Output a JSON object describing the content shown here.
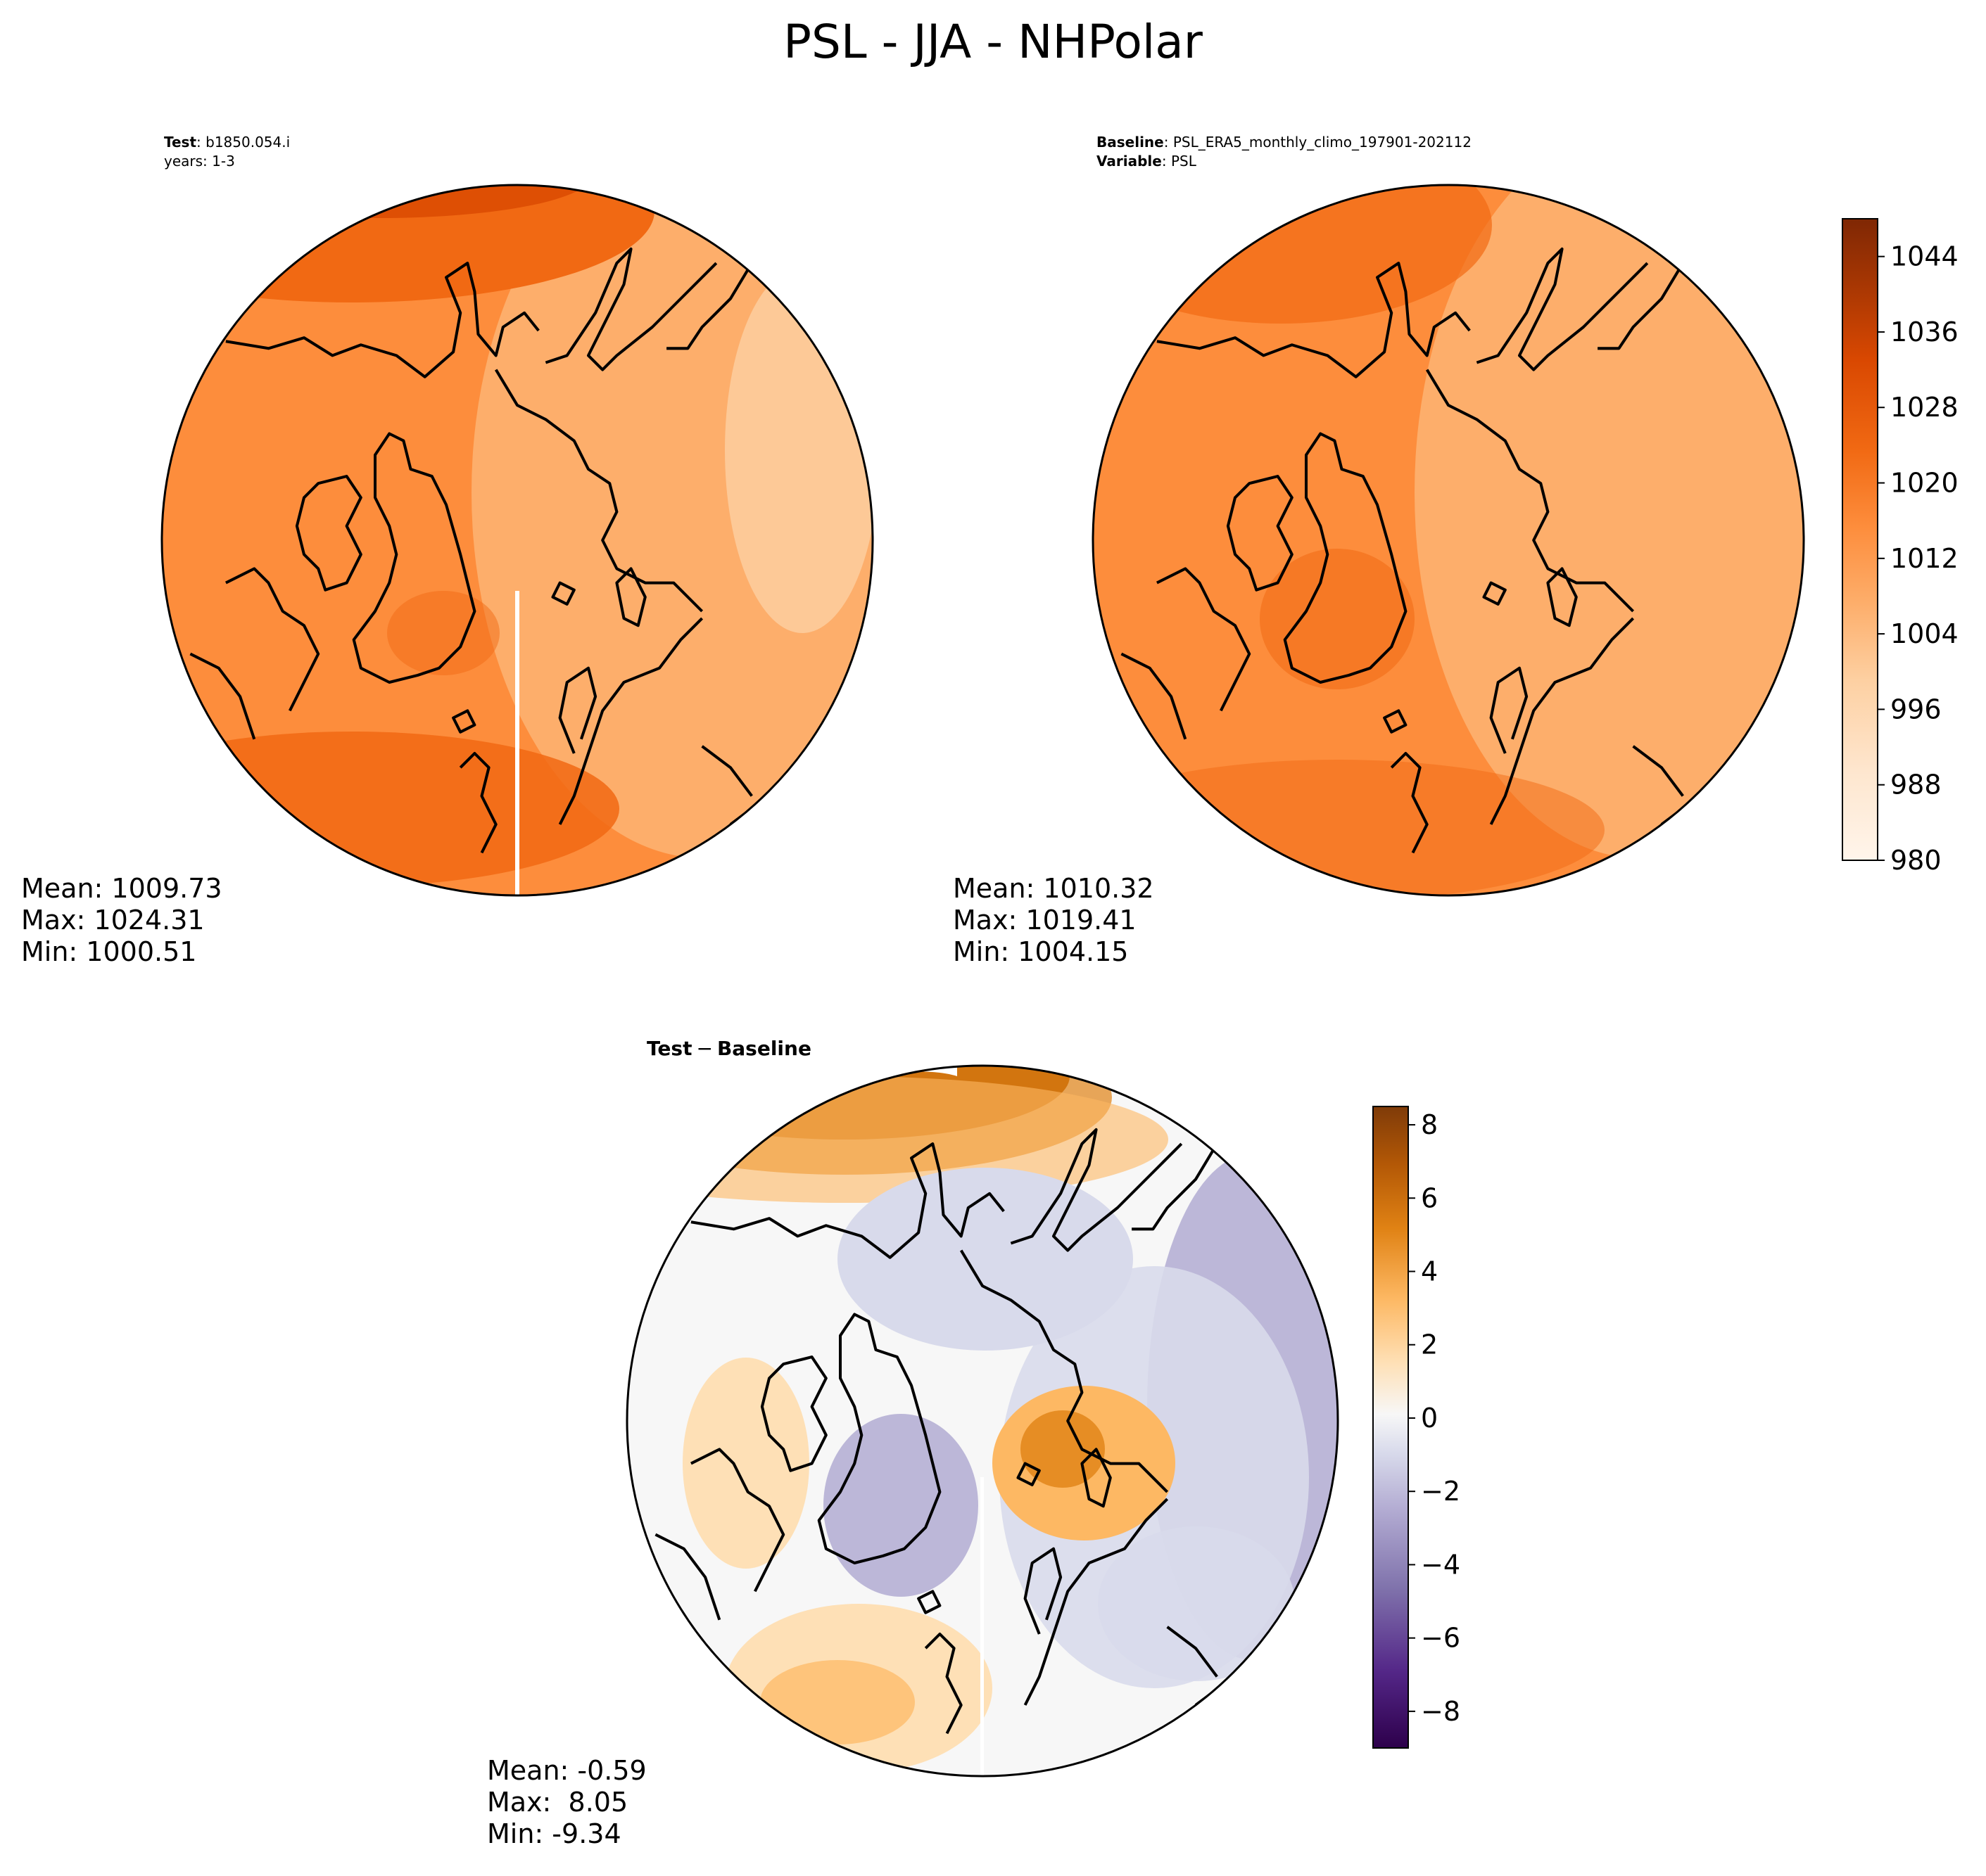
{
  "figure": {
    "title": "PSL - JJA - NHPolar"
  },
  "panels": [
    {
      "id": "test",
      "header": [
        {
          "bold": "Test",
          "sep": ": ",
          "text": "b1850.054.i"
        },
        {
          "bold": "",
          "sep": "",
          "text": "years: 1-3"
        }
      ],
      "summary": [
        "Mean: 1009.73",
        "Max: 1024.31",
        "Min: 1000.51"
      ],
      "palette": "oranges"
    },
    {
      "id": "baseline",
      "header": [
        {
          "bold": "Baseline",
          "sep": ": ",
          "text": "PSL_ERA5_monthly_climo_197901-202112"
        },
        {
          "bold": "Variable",
          "sep": ": ",
          "text": "PSL"
        }
      ],
      "summary": [
        "Mean: 1010.32",
        "Max: 1019.41",
        "Min: 1004.15"
      ],
      "palette": "oranges"
    },
    {
      "id": "diff",
      "title_bold_left": "Test",
      "title_op": "−",
      "title_bold_right": "Baseline",
      "summary": [
        "Mean: -0.59",
        "Max:  8.05",
        "Min: -9.34"
      ],
      "palette": "diverging"
    }
  ],
  "colorbars": {
    "absolute": {
      "range": [
        980,
        1048
      ],
      "ticks": [
        1044,
        1036,
        1028,
        1020,
        1012,
        1004,
        996,
        988,
        980
      ],
      "tick_labels": [
        "1044",
        "1036",
        "1028",
        "1020",
        "1012",
        "1004",
        "996",
        "988",
        "980"
      ]
    },
    "difference": {
      "range": [
        -9,
        8.5
      ],
      "ticks": [
        8,
        6,
        4,
        2,
        0,
        -2,
        -4,
        -6,
        -8
      ],
      "tick_labels": [
        "8",
        "6",
        "4",
        "2",
        "0",
        "−2",
        "−4",
        "−6",
        "−8"
      ]
    }
  },
  "colors": {
    "orange_ramp": [
      "#fff5eb",
      "#fee6ce",
      "#fdd0a2",
      "#fdae6b",
      "#fd8d3c",
      "#f16913",
      "#d94801",
      "#a63603",
      "#7f2704"
    ],
    "diverging_ramp": [
      "#2d004b",
      "#542788",
      "#8073ac",
      "#b2abd2",
      "#d8daeb",
      "#f7f7f7",
      "#fee0b6",
      "#fdb863",
      "#e08214",
      "#b35806",
      "#7f3b08"
    ]
  }
}
